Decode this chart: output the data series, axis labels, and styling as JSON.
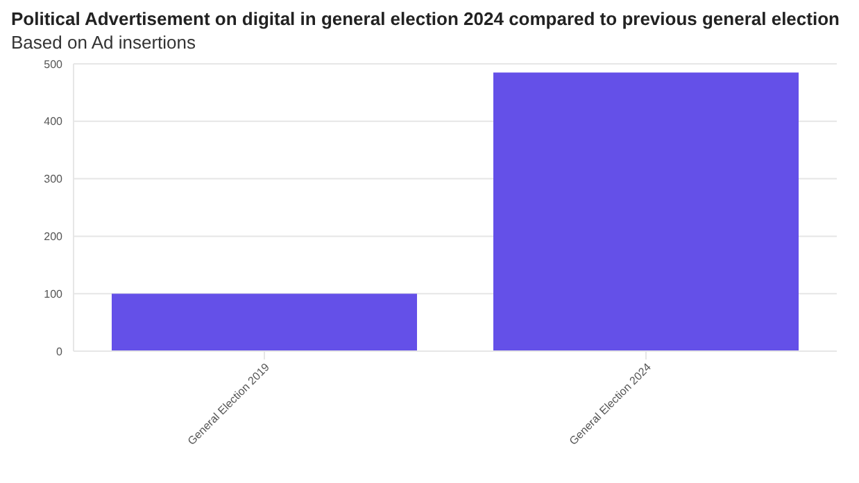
{
  "chart_data": {
    "type": "bar",
    "title": "Political Advertisement on digital in general election 2024 compared to previous general election",
    "subtitle": "Based on Ad insertions",
    "categories": [
      "General Election 2019",
      "General Election 2024"
    ],
    "values": [
      100,
      485
    ],
    "color": "#6450e8",
    "ylim": [
      0,
      500
    ],
    "yticks": [
      0,
      100,
      200,
      300,
      400,
      500
    ],
    "grid": "y"
  }
}
